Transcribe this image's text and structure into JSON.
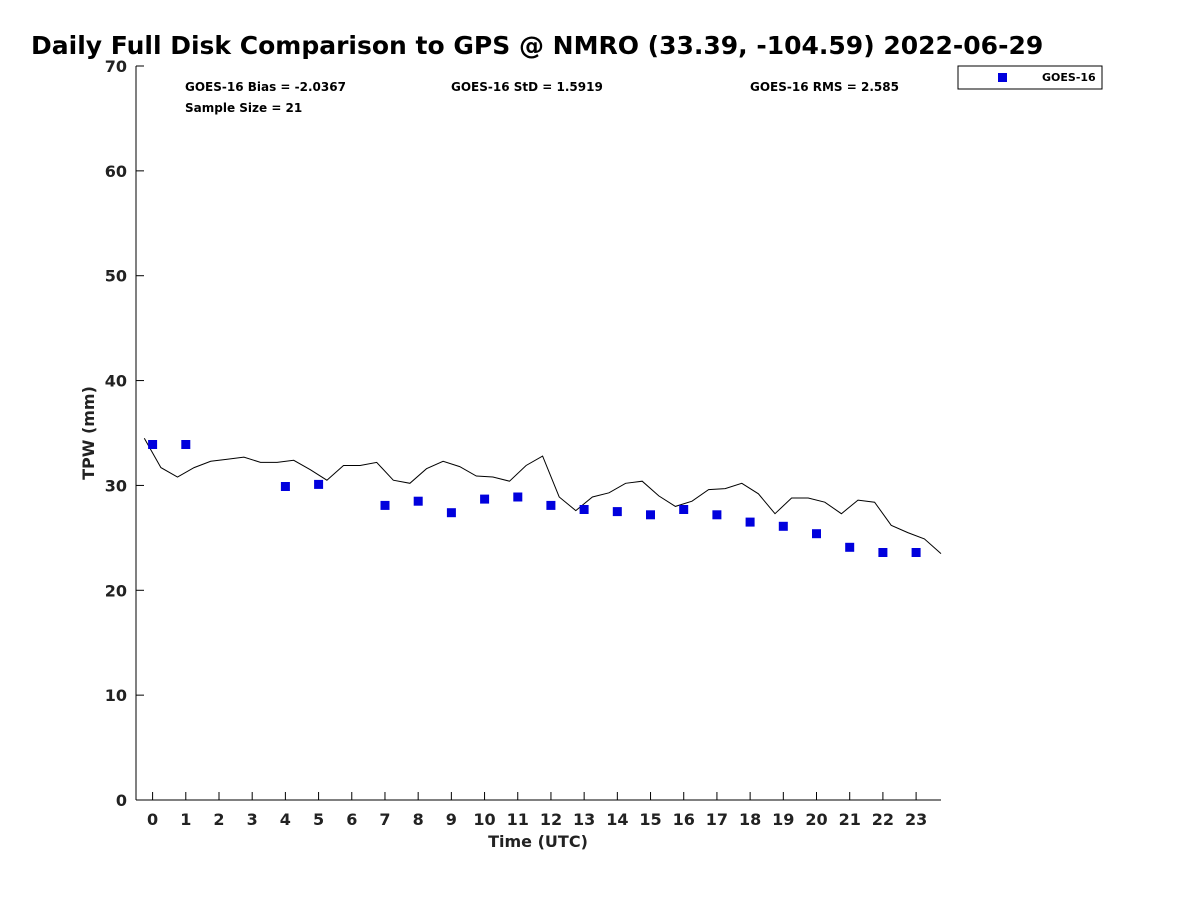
{
  "chart_data": {
    "type": "scatter",
    "title": "Daily Full Disk Comparison to GPS @ NMRO (33.39, -104.59) 2022-06-29",
    "xlabel": "Time (UTC)",
    "ylabel": "TPW (mm)",
    "xlim": [
      -0.5,
      23.75
    ],
    "ylim": [
      0,
      70
    ],
    "xticks": [
      0,
      1,
      2,
      3,
      4,
      5,
      6,
      7,
      8,
      9,
      10,
      11,
      12,
      13,
      14,
      15,
      16,
      17,
      18,
      19,
      20,
      21,
      22,
      23
    ],
    "yticks": [
      0,
      10,
      20,
      30,
      40,
      50,
      60,
      70
    ],
    "grid": false,
    "legend": {
      "placement": "top-right outside",
      "entries": [
        "GOES-16"
      ]
    },
    "stats": {
      "bias": "GOES-16 Bias = -2.0367",
      "std": "GOES-16 StD = 1.5919",
      "rms": "GOES-16 RMS = 2.585",
      "sample": "Sample Size = 21"
    },
    "series": [
      {
        "name": "GOES-16",
        "kind": "scatter",
        "marker": "square",
        "color": "#0000dd",
        "x": [
          0,
          1,
          4,
          5,
          7,
          8,
          9,
          10,
          11,
          12,
          13,
          14,
          15,
          16,
          17,
          18,
          19,
          20,
          21,
          22,
          23
        ],
        "y": [
          33.9,
          33.9,
          29.9,
          30.1,
          28.1,
          28.5,
          27.4,
          28.7,
          28.9,
          28.1,
          27.7,
          27.5,
          27.2,
          27.7,
          27.2,
          26.5,
          26.1,
          25.4,
          24.1,
          23.6,
          23.6
        ]
      },
      {
        "kind": "line",
        "color": "#000000",
        "x": [
          -0.25,
          0.25,
          0.75,
          1.25,
          1.75,
          2.25,
          2.75,
          3.25,
          3.75,
          4.25,
          4.75,
          5.25,
          5.75,
          6.25,
          6.75,
          7.25,
          7.75,
          8.25,
          8.75,
          9.25,
          9.75,
          10.25,
          10.75,
          11.25,
          11.75,
          12.25,
          12.75,
          13.25,
          13.75,
          14.25,
          14.75,
          15.25,
          15.75,
          16.25,
          16.75,
          17.25,
          17.75,
          18.25,
          18.75,
          19.25,
          19.75,
          20.25,
          20.75,
          21.25,
          21.75,
          22.25,
          22.75,
          23.25,
          23.75
        ],
        "y": [
          34.5,
          31.7,
          30.8,
          31.7,
          32.3,
          32.5,
          32.7,
          32.2,
          32.2,
          32.4,
          31.5,
          30.5,
          31.9,
          31.9,
          32.2,
          30.5,
          30.2,
          31.6,
          32.3,
          31.8,
          30.9,
          30.8,
          30.4,
          31.9,
          32.8,
          28.9,
          27.6,
          28.9,
          29.3,
          30.2,
          30.4,
          29.0,
          28.0,
          28.5,
          29.6,
          29.7,
          30.2,
          29.2,
          27.3,
          28.8,
          28.8,
          28.4,
          27.3,
          28.6,
          28.4,
          26.2,
          25.5,
          24.9,
          23.5
        ]
      }
    ]
  }
}
